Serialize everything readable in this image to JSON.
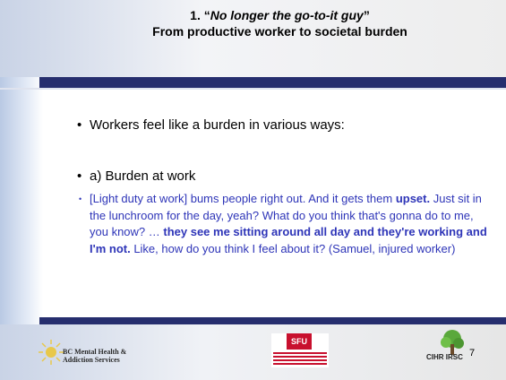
{
  "title": {
    "number": "1. “",
    "quote": "No longer the go-to-it guy",
    "close": "”",
    "subtitle": "From productive worker to societal burden"
  },
  "bullets": [
    "Workers feel like a burden in various ways:",
    "a) Burden at work"
  ],
  "quote": [
    {
      "text": "[Light duty at work] bums people right out. And it gets them ",
      "bold": false
    },
    {
      "text": "upset.",
      "bold": true
    },
    {
      "text": " Just sit in the lunchroom for the day, yeah? What do you think that's gonna do to me, you know? … ",
      "bold": false
    },
    {
      "text": "they see me sitting around all day and they're working and I'm not.",
      "bold": true
    },
    {
      "text": " Like, how do you think I feel about it? (Samuel, injured worker)",
      "bold": false
    }
  ],
  "footer": {
    "left_logo": "BC Mental Health & Addiction Services",
    "center_logo": "SFU",
    "right_logo": "CIHR IRSC",
    "page": "7"
  }
}
